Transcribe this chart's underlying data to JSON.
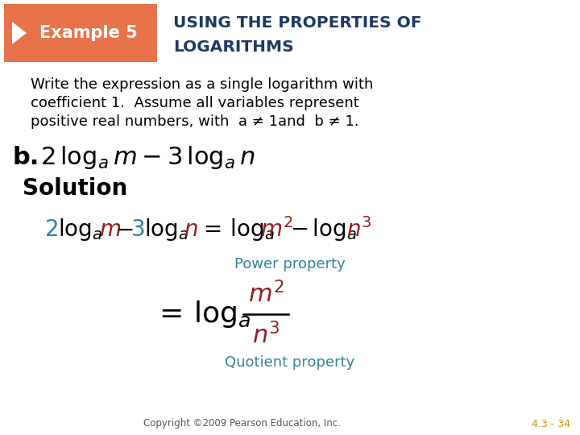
{
  "bg_color": "#ffffff",
  "header_box_color": "#e8734a",
  "dark_blue": "#1f3864",
  "header_label": "Example 5",
  "header_title_line1": "USING THE PROPERTIES OF",
  "header_title_line2": "LOGARITHMS",
  "body_text_line1": "Write the expression as a single logarithm with",
  "body_text_line2": "coefficient 1.  Assume all variables represent",
  "body_text_line3": "positive real numbers, with  a ≠ 1and  b ≠ 1.",
  "part_label": "b.",
  "solution_label": "Solution",
  "power_property_label": "Power property",
  "quotient_property_label": "Quotient property",
  "copyright_text": "Copyright ©2009 Pearson Education, Inc.",
  "slide_number": "4.3 - 34",
  "teal_color": "#31849b",
  "red_color": "#952020",
  "black_color": "#000000",
  "slide_num_color": "#c8960c"
}
